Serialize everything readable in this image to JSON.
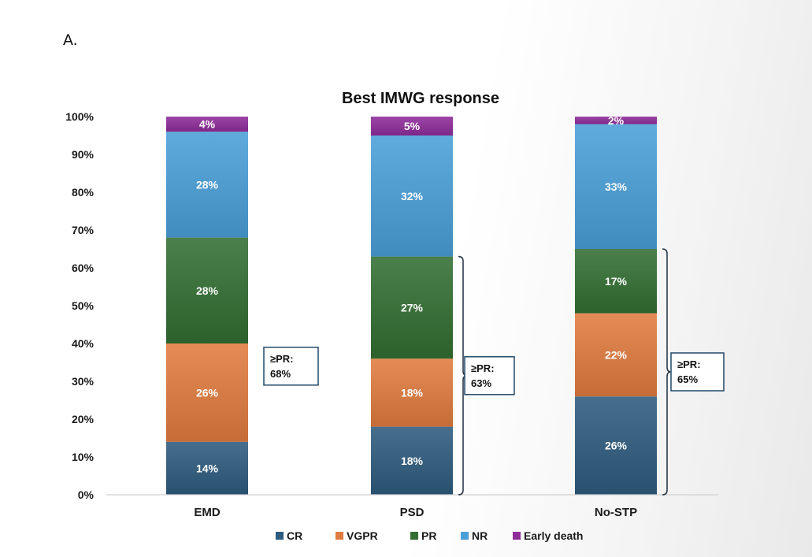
{
  "panel_label": "A.",
  "colors": {
    "CR": "#2e5b7e",
    "VGPR": "#e07b3f",
    "PR": "#336e32",
    "NR": "#4a9fd8",
    "Early death": "#8e2c9a"
  },
  "chart_data": {
    "type": "bar",
    "stacked": true,
    "title": "Best IMWG response",
    "xlabel": "",
    "ylabel": "",
    "ylim": [
      0,
      100
    ],
    "yticks": [
      "0%",
      "10%",
      "20%",
      "30%",
      "40%",
      "50%",
      "60%",
      "70%",
      "80%",
      "90%",
      "100%"
    ],
    "categories": [
      "EMD",
      "PSD",
      "No-STP"
    ],
    "series": [
      {
        "name": "CR",
        "values": [
          14,
          18,
          26
        ],
        "labels": [
          "14%",
          "18%",
          "26%"
        ]
      },
      {
        "name": "VGPR",
        "values": [
          26,
          18,
          22
        ],
        "labels": [
          "26%",
          "18%",
          "22%"
        ]
      },
      {
        "name": "PR",
        "values": [
          28,
          27,
          17
        ],
        "labels": [
          "28%",
          "27%",
          "17%"
        ]
      },
      {
        "name": "NR",
        "values": [
          28,
          32,
          33
        ],
        "labels": [
          "28%",
          "32%",
          "33%"
        ]
      },
      {
        "name": "Early death",
        "values": [
          4,
          5,
          2
        ],
        "labels": [
          "4%",
          "5%",
          "2%"
        ]
      }
    ],
    "annotations": [
      {
        "category": "EMD",
        "line1": "≥PR:",
        "line2": "68%",
        "bracket": false
      },
      {
        "category": "PSD",
        "line1": "≥PR:",
        "line2": "63%",
        "bracket": true
      },
      {
        "category": "No-STP",
        "line1": "≥PR:",
        "line2": "65%",
        "bracket": true
      }
    ],
    "legend_position": "bottom"
  }
}
